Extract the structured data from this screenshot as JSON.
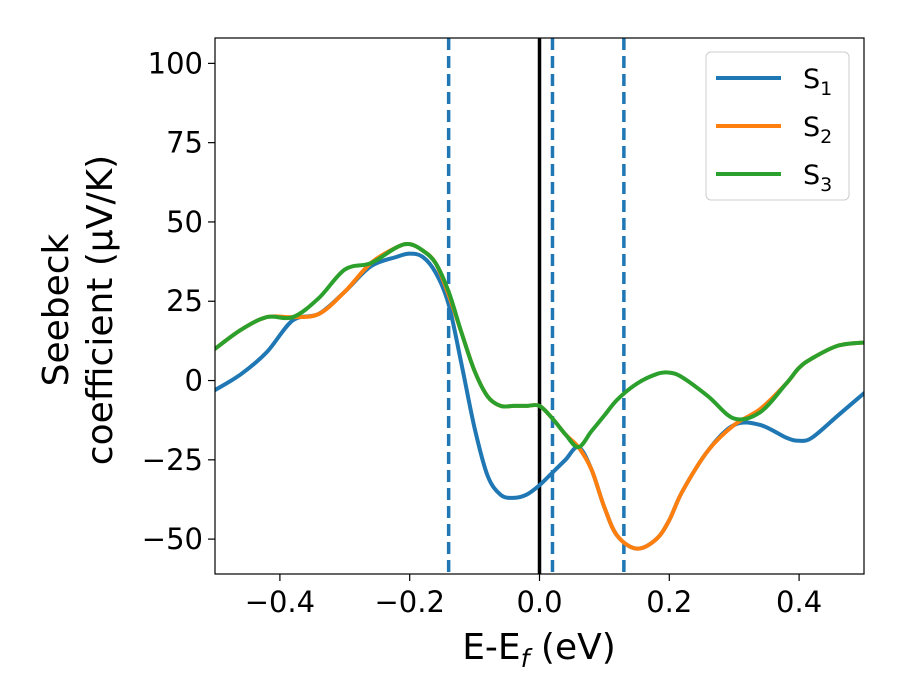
{
  "chart_data": {
    "type": "line",
    "xlabel_base": "E-E",
    "xlabel_sub": "f",
    "xlabel_unit": " (eV)",
    "ylabel_line1": "Seebeck",
    "ylabel_line2": "coefficient  (μV/K)",
    "xlim": [
      -0.5,
      0.5
    ],
    "ylim": [
      -61,
      108
    ],
    "xticks": [
      -0.4,
      -0.2,
      0.0,
      0.2,
      0.4
    ],
    "xtick_labels": [
      "−0.4",
      "−0.2",
      "0.0",
      "0.2",
      "0.4"
    ],
    "yticks": [
      -50,
      -25,
      0,
      25,
      50,
      75,
      100
    ],
    "ytick_labels": [
      "−50",
      "−25",
      "0",
      "25",
      "50",
      "75",
      "100"
    ],
    "grid": false,
    "legend_position": "top-right",
    "reference_lines": [
      {
        "x": 0.0,
        "style": "solid",
        "color": "#000000"
      },
      {
        "x": -0.14,
        "style": "dashed",
        "color": "#1f77b4"
      },
      {
        "x": 0.02,
        "style": "dashed",
        "color": "#1f77b4"
      },
      {
        "x": 0.13,
        "style": "dashed",
        "color": "#1f77b4"
      }
    ],
    "series": [
      {
        "name": "S",
        "sub": "1",
        "color": "#1f77b4",
        "x": [
          -0.5,
          -0.46,
          -0.42,
          -0.38,
          -0.34,
          -0.3,
          -0.26,
          -0.22,
          -0.2,
          -0.18,
          -0.16,
          -0.14,
          -0.12,
          -0.1,
          -0.08,
          -0.06,
          -0.04,
          -0.02,
          0.0,
          0.02,
          0.04,
          0.06,
          0.08,
          0.1,
          0.12,
          0.15,
          0.18,
          0.2,
          0.22,
          0.26,
          0.3,
          0.34,
          0.38,
          0.4,
          0.42,
          0.46,
          0.5
        ],
        "y": [
          -3,
          2,
          9,
          19,
          21,
          28,
          36,
          39,
          40,
          39,
          34,
          24,
          5,
          -15,
          -30,
          -36,
          -37,
          -36,
          -33,
          -29,
          -25,
          -21,
          -28,
          -40,
          -49,
          -53,
          -50,
          -44,
          -35,
          -22,
          -14,
          -14,
          -18,
          -19,
          -18,
          -11,
          -4
        ]
      },
      {
        "name": "S",
        "sub": "2",
        "color": "#ff7f0e",
        "x": [
          -0.5,
          -0.46,
          -0.42,
          -0.38,
          -0.34,
          -0.3,
          -0.26,
          -0.22,
          -0.2,
          -0.18,
          -0.16,
          -0.14,
          -0.12,
          -0.1,
          -0.08,
          -0.06,
          -0.04,
          -0.02,
          0.0,
          0.02,
          0.04,
          0.06,
          0.08,
          0.1,
          0.12,
          0.15,
          0.18,
          0.2,
          0.22,
          0.26,
          0.3,
          0.34,
          0.38,
          0.4,
          0.42,
          0.46,
          0.5
        ],
        "y": [
          10,
          16,
          20,
          20,
          21,
          28,
          37,
          42,
          43,
          41,
          37,
          27,
          15,
          3,
          -5,
          -8,
          -8,
          -8,
          -8,
          -12,
          -17,
          -21,
          -28,
          -40,
          -49,
          -53,
          -50,
          -44,
          -35,
          -22,
          -14,
          -9,
          -1,
          4,
          7,
          11,
          12
        ]
      },
      {
        "name": "S",
        "sub": "3",
        "color": "#2ca02c",
        "x": [
          -0.5,
          -0.46,
          -0.42,
          -0.38,
          -0.34,
          -0.3,
          -0.26,
          -0.22,
          -0.2,
          -0.18,
          -0.16,
          -0.14,
          -0.12,
          -0.1,
          -0.08,
          -0.06,
          -0.04,
          -0.02,
          0.0,
          0.02,
          0.04,
          0.06,
          0.08,
          0.1,
          0.12,
          0.15,
          0.18,
          0.2,
          0.22,
          0.26,
          0.3,
          0.34,
          0.38,
          0.4,
          0.42,
          0.46,
          0.5
        ],
        "y": [
          10,
          16,
          20,
          20,
          26,
          35,
          37,
          42,
          43,
          41,
          37,
          28,
          15,
          3,
          -5,
          -8,
          -8,
          -8,
          -8,
          -12,
          -17,
          -21,
          -16,
          -11,
          -6,
          -1,
          2,
          2.5,
          1,
          -5,
          -12,
          -10,
          -1,
          4,
          7,
          11,
          12
        ]
      }
    ]
  }
}
